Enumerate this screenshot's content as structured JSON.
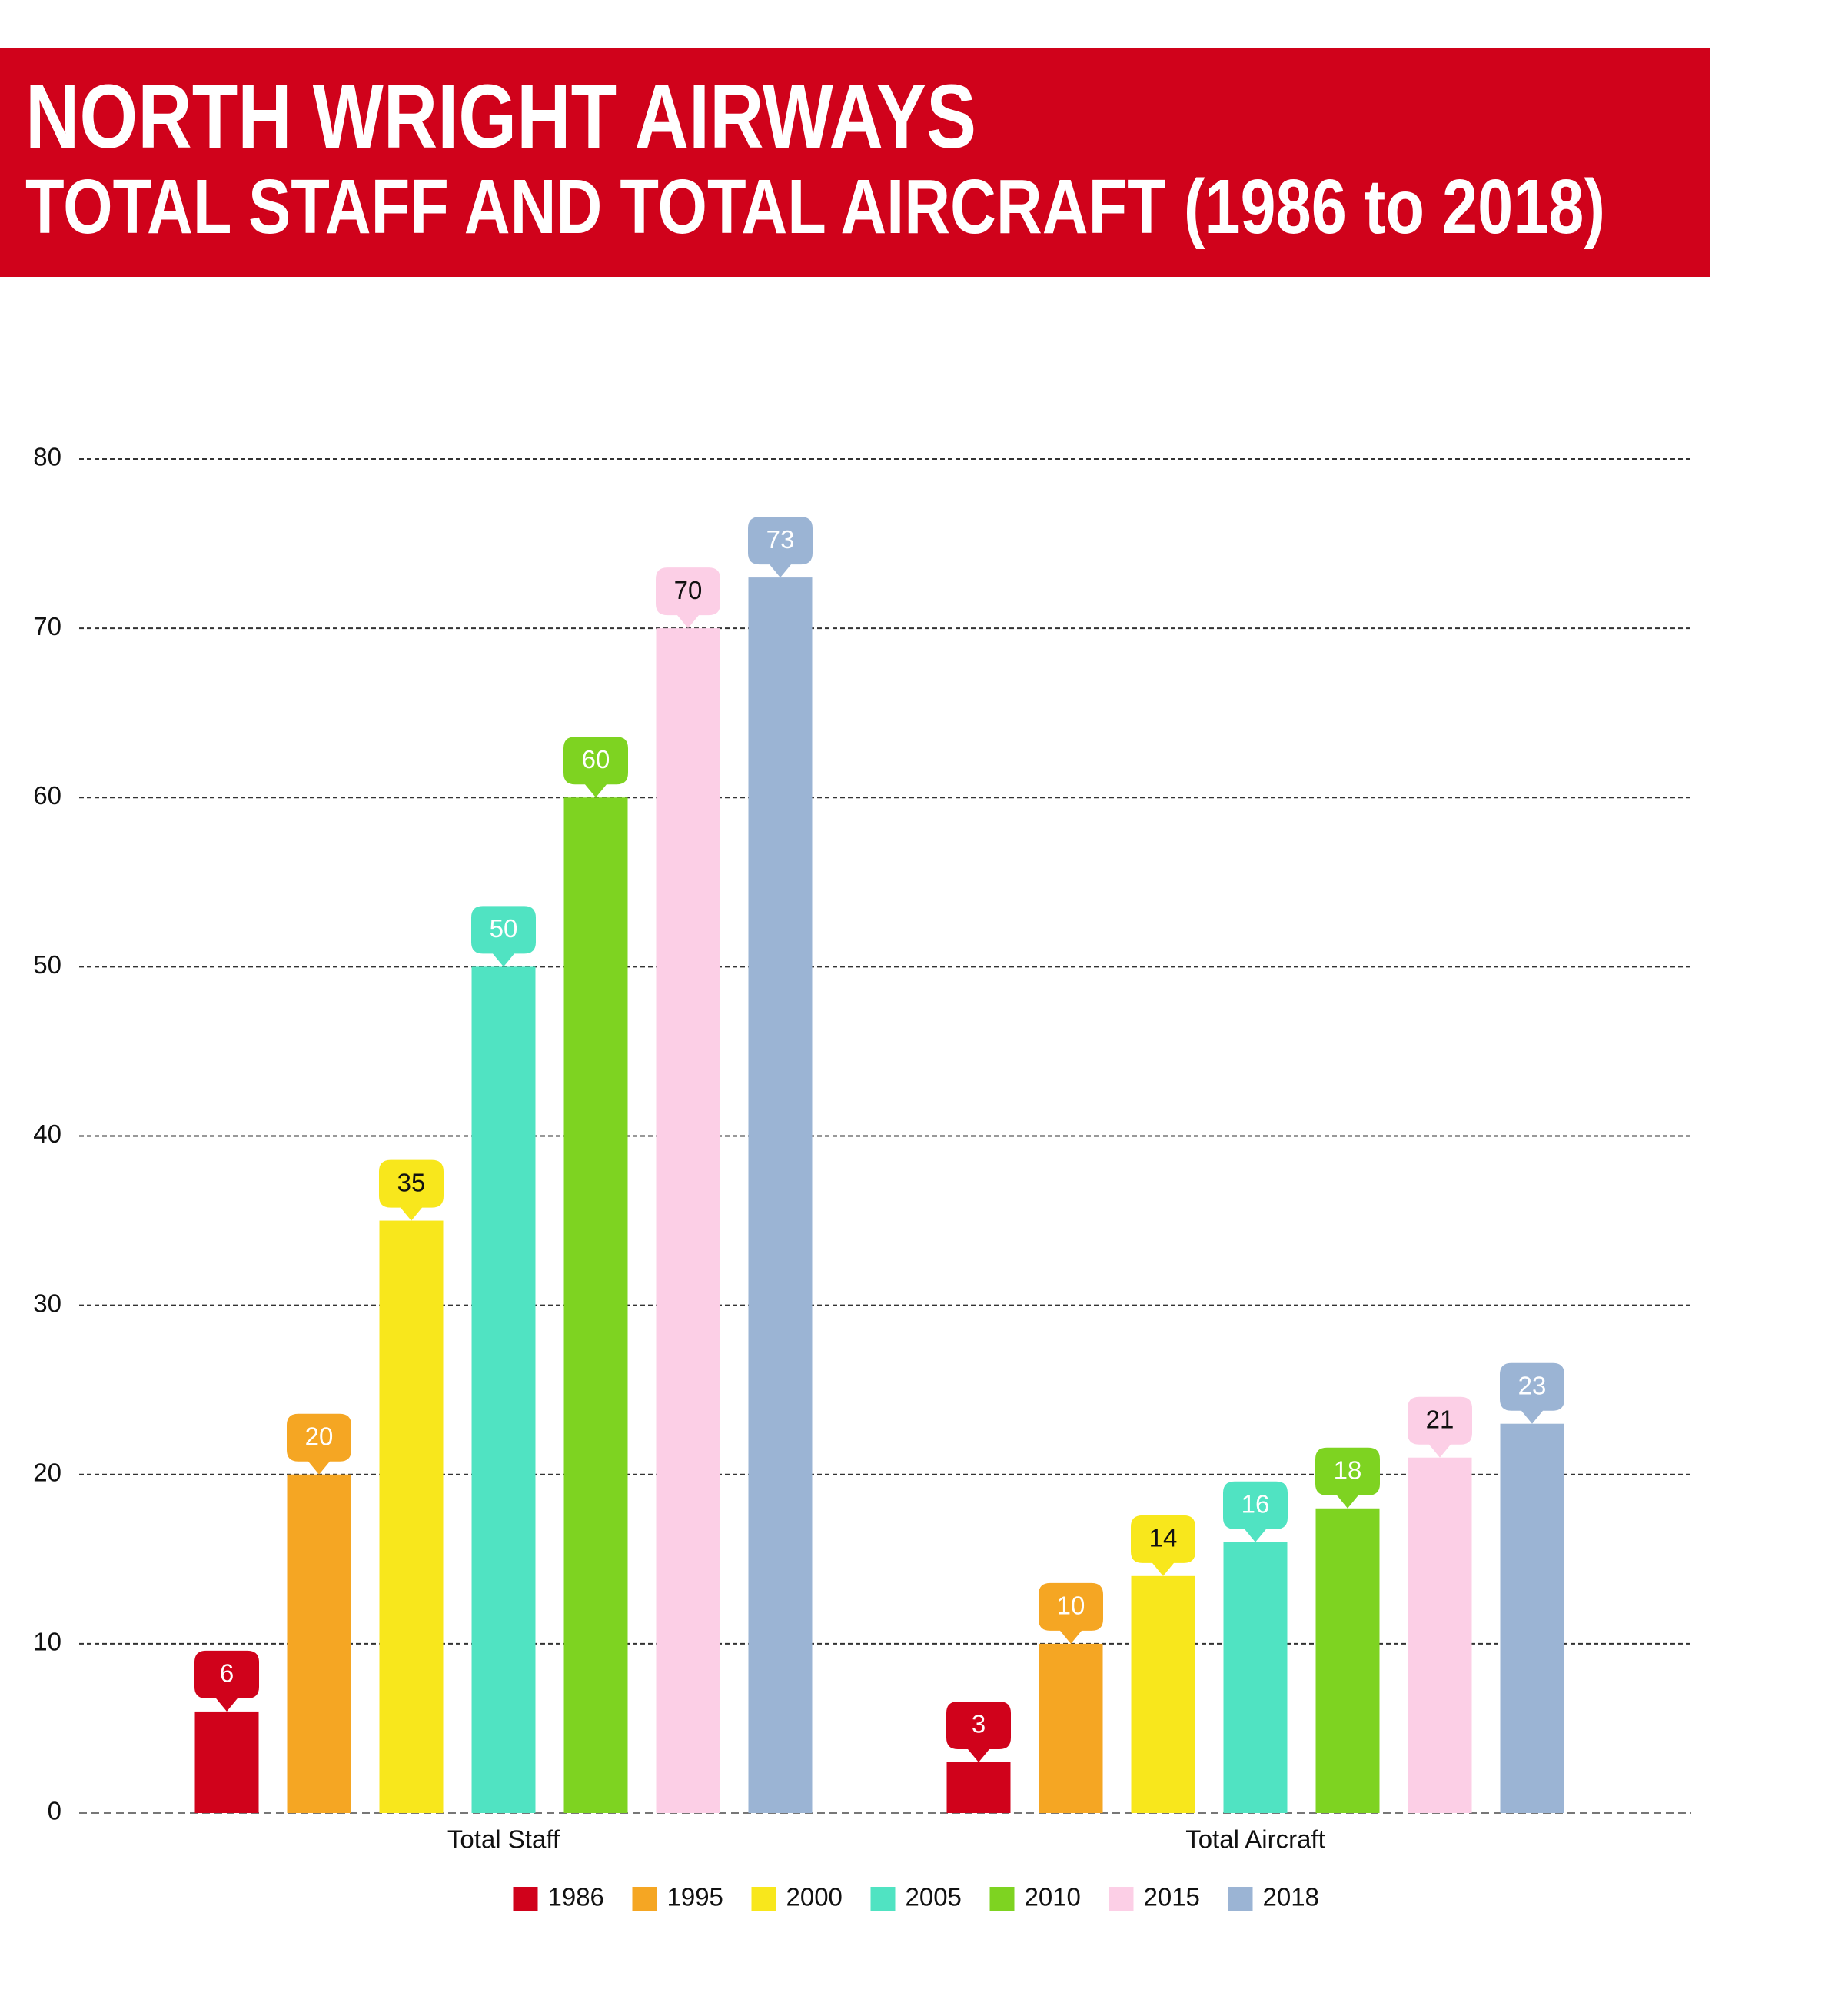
{
  "chart_data": {
    "type": "bar",
    "title": "NORTH WRIGHT AIRWAYS",
    "subtitle": "TOTAL STAFF AND TOTAL AIRCRAFT (1986 to 2018)",
    "categories": [
      "Total Staff",
      "Total Aircraft"
    ],
    "series": [
      {
        "name": "1986",
        "color": "#d0021b",
        "values": [
          6,
          3
        ]
      },
      {
        "name": "1995",
        "color": "#f5a623",
        "values": [
          20,
          10
        ]
      },
      {
        "name": "2000",
        "color": "#f8e71c",
        "values": [
          35,
          14
        ]
      },
      {
        "name": "2005",
        "color": "#50e3c2",
        "values": [
          50,
          16
        ]
      },
      {
        "name": "2010",
        "color": "#7ed321",
        "values": [
          60,
          18
        ]
      },
      {
        "name": "2015",
        "color": "#fccfe6",
        "values": [
          70,
          21
        ]
      },
      {
        "name": "2018",
        "color": "#9bb4d4",
        "values": [
          73,
          23
        ]
      }
    ],
    "ylim": [
      0,
      80
    ],
    "yticks": [
      0,
      10,
      20,
      30,
      40,
      50,
      60,
      70,
      80
    ],
    "grid": true,
    "legend": "bottom"
  }
}
